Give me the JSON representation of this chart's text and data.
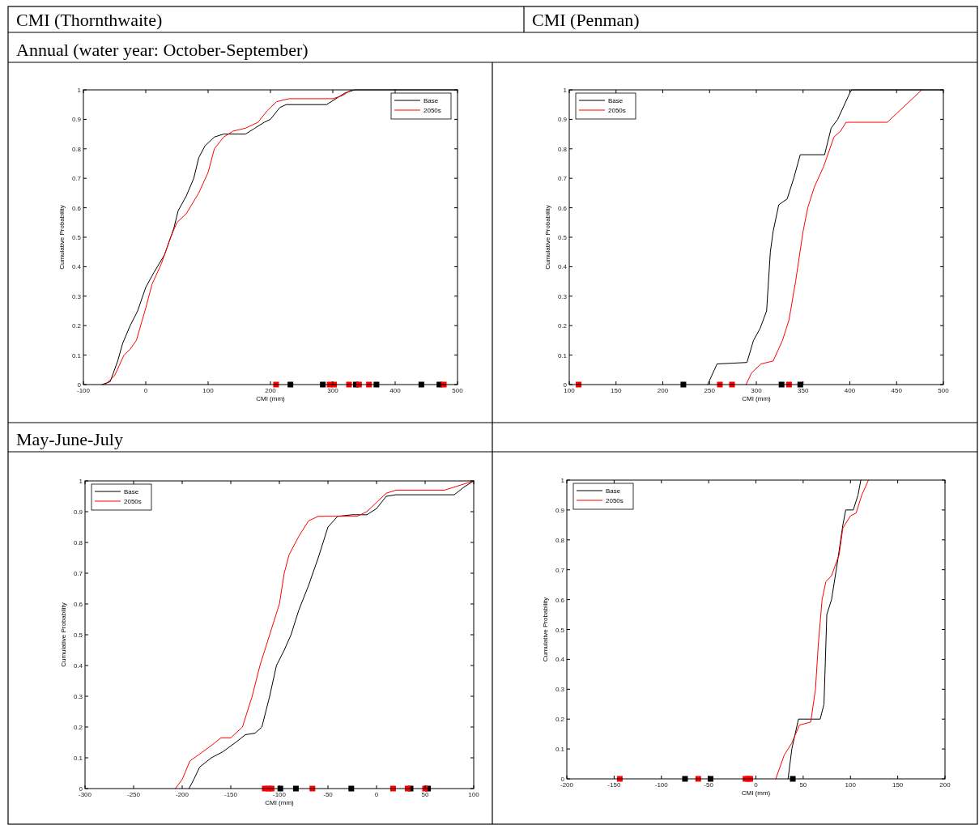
{
  "chart_data": [
    {
      "type": "line",
      "annotations": [
        "CMI (Thornthwaite)",
        "Annual (water year: October-September)"
      ],
      "xlabel": "CMI (mm)",
      "ylabel": "Cumulative Probability",
      "xlim": [
        -100,
        500
      ],
      "xticks": [
        -100,
        0,
        100,
        200,
        300,
        400,
        500
      ],
      "ylim": [
        0,
        1
      ],
      "yticks": [
        0,
        0.1,
        0.2,
        0.3,
        0.4,
        0.5,
        0.6,
        0.7,
        0.8,
        0.9,
        1
      ],
      "legend": "top right",
      "series": [
        {
          "name": "Base",
          "color": "#000000",
          "x": [
            -70,
            -57,
            -45,
            -37,
            -25,
            -13,
            0,
            13,
            30,
            45,
            52,
            65,
            77,
            85,
            95,
            110,
            125,
            160,
            175,
            190,
            200,
            215,
            225,
            290,
            305,
            320,
            335,
            500
          ],
          "values": [
            0,
            0.01,
            0.08,
            0.14,
            0.2,
            0.25,
            0.33,
            0.38,
            0.44,
            0.53,
            0.59,
            0.64,
            0.7,
            0.77,
            0.81,
            0.84,
            0.85,
            0.85,
            0.87,
            0.89,
            0.9,
            0.94,
            0.95,
            0.95,
            0.97,
            0.99,
            1,
            1
          ]
        },
        {
          "name": "2050s",
          "color": "#ff0000",
          "x": [
            -65,
            -50,
            -35,
            -25,
            -15,
            0,
            10,
            25,
            40,
            50,
            65,
            85,
            100,
            110,
            125,
            140,
            160,
            180,
            195,
            210,
            230,
            300,
            315,
            330
          ],
          "values": [
            0,
            0.03,
            0.1,
            0.12,
            0.15,
            0.26,
            0.34,
            0.41,
            0.5,
            0.55,
            0.58,
            0.65,
            0.72,
            0.8,
            0.84,
            0.86,
            0.87,
            0.89,
            0.93,
            0.96,
            0.97,
            0.97,
            0.98,
            1
          ]
        },
        {
          "type": "scatter",
          "marker": "square",
          "color": "#000000",
          "x": [
            232,
            284,
            337,
            370,
            442,
            471
          ],
          "values": [
            0,
            0,
            0,
            0,
            0,
            0
          ]
        },
        {
          "type": "scatter",
          "marker": "square",
          "color": "#ff0000",
          "x": [
            209,
            295,
            302,
            326,
            342,
            358,
            478
          ],
          "values": [
            0,
            0,
            0,
            0,
            0,
            0,
            0
          ]
        }
      ]
    },
    {
      "type": "line",
      "annotations": [
        "CMI (Penman)"
      ],
      "xlabel": "CMI (mm)",
      "ylabel": "Cumulative Probability",
      "xlim": [
        100,
        500
      ],
      "xticks": [
        100,
        150,
        200,
        250,
        300,
        350,
        400,
        450,
        500
      ],
      "ylim": [
        0,
        1
      ],
      "yticks": [
        0,
        0.1,
        0.2,
        0.3,
        0.4,
        0.5,
        0.6,
        0.7,
        0.8,
        0.9,
        1
      ],
      "legend": "top left",
      "series": [
        {
          "name": "Base",
          "color": "#000000",
          "x": [
            248,
            258,
            290,
            297,
            304,
            311,
            315,
            318,
            324,
            333,
            340,
            347,
            373,
            380,
            387,
            400,
            402,
            500
          ],
          "values": [
            0,
            0.07,
            0.075,
            0.15,
            0.19,
            0.25,
            0.45,
            0.52,
            0.61,
            0.63,
            0.7,
            0.78,
            0.78,
            0.87,
            0.9,
            0.99,
            1,
            1
          ]
        },
        {
          "name": "2050s",
          "color": "#ff0000",
          "x": [
            289,
            295,
            305,
            318,
            328,
            335,
            342,
            350,
            355,
            362,
            372,
            383,
            390,
            396,
            440,
            450,
            477
          ],
          "values": [
            0,
            0.04,
            0.07,
            0.08,
            0.15,
            0.22,
            0.35,
            0.52,
            0.6,
            0.67,
            0.74,
            0.84,
            0.86,
            0.89,
            0.89,
            0.92,
            1
          ]
        },
        {
          "type": "scatter",
          "marker": "square",
          "color": "#000000",
          "x": [
            222,
            327,
            347
          ],
          "values": [
            0,
            0,
            0
          ]
        },
        {
          "type": "scatter",
          "marker": "square",
          "color": "#ff0000",
          "x": [
            110,
            261,
            274,
            335
          ],
          "values": [
            0,
            0,
            0,
            0
          ]
        }
      ]
    },
    {
      "type": "line",
      "annotations": [
        "May-June-July"
      ],
      "xlabel": "CMI (mm)",
      "ylabel": "Cumulative Probability",
      "xlim": [
        -300,
        100
      ],
      "xticks": [
        -300,
        -250,
        -200,
        -150,
        -100,
        -50,
        0,
        50,
        100
      ],
      "ylim": [
        0,
        1
      ],
      "yticks": [
        0,
        0.1,
        0.2,
        0.3,
        0.4,
        0.5,
        0.6,
        0.7,
        0.8,
        0.9,
        1
      ],
      "legend": "top left",
      "series": [
        {
          "name": "Base",
          "color": "#000000",
          "x": [
            -193,
            -188,
            -182,
            -170,
            -158,
            -145,
            -135,
            -125,
            -118,
            -110,
            -103,
            -95,
            -88,
            -80,
            -70,
            -60,
            -50,
            -40,
            -25,
            -10,
            0,
            10,
            20,
            80,
            90,
            100
          ],
          "values": [
            0,
            0.03,
            0.07,
            0.1,
            0.12,
            0.15,
            0.175,
            0.18,
            0.2,
            0.3,
            0.4,
            0.45,
            0.5,
            0.58,
            0.66,
            0.75,
            0.85,
            0.885,
            0.89,
            0.89,
            0.91,
            0.95,
            0.955,
            0.955,
            0.98,
            1
          ]
        },
        {
          "name": "2050s",
          "color": "#ff0000",
          "x": [
            -207,
            -200,
            -192,
            -183,
            -170,
            -160,
            -150,
            -138,
            -128,
            -120,
            -110,
            -100,
            -95,
            -90,
            -80,
            -70,
            -60,
            -20,
            -10,
            0,
            10,
            20,
            70,
            85,
            100
          ],
          "values": [
            0,
            0.03,
            0.09,
            0.11,
            0.14,
            0.165,
            0.165,
            0.2,
            0.3,
            0.4,
            0.5,
            0.6,
            0.7,
            0.76,
            0.82,
            0.87,
            0.885,
            0.885,
            0.9,
            0.93,
            0.96,
            0.97,
            0.97,
            0.985,
            1
          ]
        },
        {
          "type": "scatter",
          "marker": "square",
          "color": "#000000",
          "x": [
            -99,
            -83,
            -26,
            35,
            53
          ],
          "values": [
            0,
            0,
            0,
            0,
            0
          ]
        },
        {
          "type": "scatter",
          "marker": "square",
          "color": "#ff0000",
          "x": [
            -115,
            -111,
            -108,
            -66,
            17,
            32,
            50
          ],
          "values": [
            0,
            0,
            0,
            0,
            0,
            0,
            0
          ]
        }
      ]
    },
    {
      "type": "line",
      "xlabel": "CMI (mm)",
      "ylabel": "Cumulative Probability",
      "xlim": [
        -200,
        200
      ],
      "xticks": [
        -200,
        -150,
        -100,
        -50,
        0,
        50,
        100,
        150,
        200
      ],
      "ylim": [
        0,
        1
      ],
      "yticks": [
        0,
        0.1,
        0.2,
        0.3,
        0.4,
        0.5,
        0.6,
        0.7,
        0.8,
        0.9,
        1
      ],
      "legend": "top left",
      "series": [
        {
          "name": "Base",
          "color": "#000000",
          "x": [
            34,
            38,
            45,
            68,
            72,
            75,
            80,
            86,
            92,
            95,
            103,
            108,
            111
          ],
          "values": [
            0,
            0.1,
            0.2,
            0.2,
            0.25,
            0.55,
            0.6,
            0.72,
            0.85,
            0.9,
            0.9,
            0.95,
            1
          ]
        },
        {
          "name": "2050s",
          "color": "#ff0000",
          "x": [
            21,
            30,
            38,
            46,
            58,
            63,
            66,
            70,
            74,
            80,
            88,
            92,
            100,
            106,
            112,
            119
          ],
          "values": [
            0,
            0.08,
            0.12,
            0.18,
            0.19,
            0.3,
            0.45,
            0.6,
            0.66,
            0.68,
            0.75,
            0.84,
            0.88,
            0.89,
            0.95,
            1
          ]
        },
        {
          "type": "scatter",
          "marker": "square",
          "color": "#000000",
          "x": [
            -75,
            -48,
            39
          ],
          "values": [
            0,
            0,
            0
          ]
        },
        {
          "type": "scatter",
          "marker": "square",
          "color": "#ff0000",
          "x": [
            -144,
            -61,
            -11,
            -8,
            -6
          ],
          "values": [
            0,
            0,
            0,
            0,
            0
          ]
        }
      ]
    }
  ]
}
